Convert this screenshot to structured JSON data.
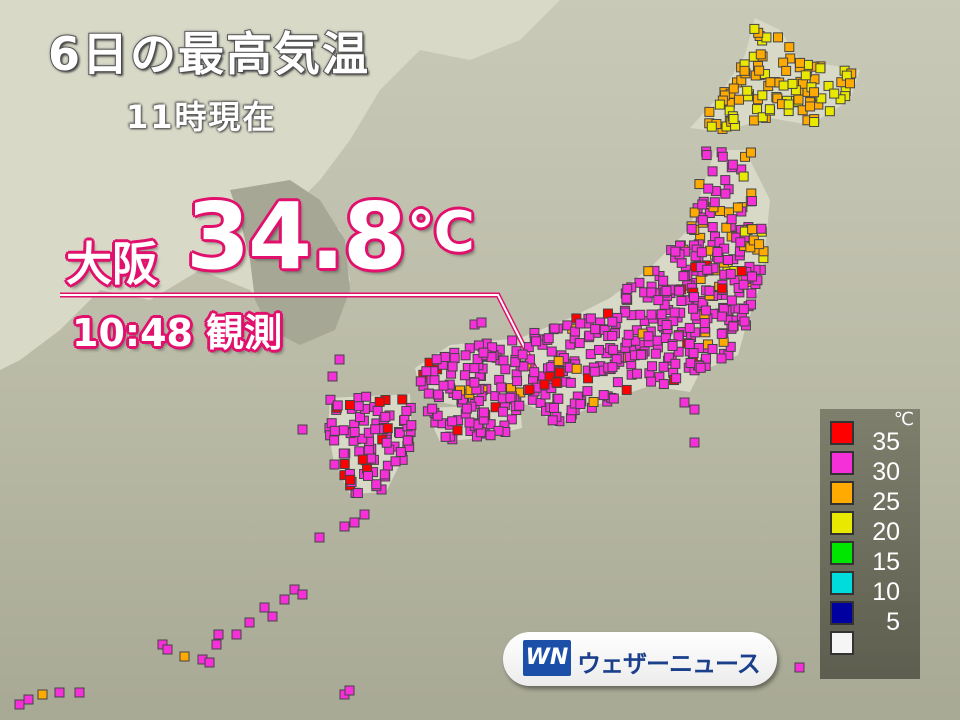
{
  "title": "6日の最高気温",
  "subtitle": "11時現在",
  "highlight": {
    "city": "大阪",
    "value": "34.8",
    "unit": "℃",
    "observed": "10:48 観測"
  },
  "legend": {
    "unit": "℃",
    "items": [
      {
        "label": "35",
        "color": "#ff0000"
      },
      {
        "label": "30",
        "color": "#f530d8"
      },
      {
        "label": "25",
        "color": "#ffaa00"
      },
      {
        "label": "20",
        "color": "#e8e800"
      },
      {
        "label": "15",
        "color": "#00e600"
      },
      {
        "label": "10",
        "color": "#00dcdc"
      },
      {
        "label": "5",
        "color": "#0000a0"
      },
      {
        "label": "",
        "color": "#f5f5f5"
      }
    ]
  },
  "logo": {
    "mark": "WN",
    "text": "ウェザーニュース"
  },
  "colors": {
    "land": "#dcdccb",
    "sea": "#b6b7a3",
    "accent": "#e0106c"
  }
}
